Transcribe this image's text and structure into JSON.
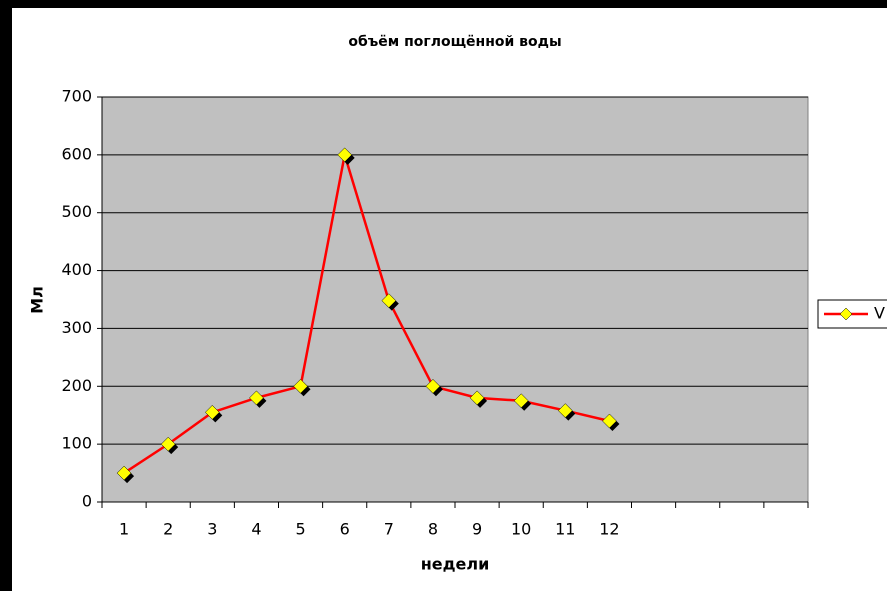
{
  "chart_data": {
    "type": "line",
    "title": "объём поглощённой воды",
    "x_label": "недели",
    "y_label": "Мл",
    "categories": [
      "1",
      "2",
      "3",
      "4",
      "5",
      "6",
      "7",
      "8",
      "9",
      "10",
      "11",
      "12",
      null,
      null,
      null,
      null
    ],
    "series": [
      {
        "name": "V",
        "color": "#ff0000",
        "marker_color": "#ffff00",
        "values": [
          50,
          100,
          155,
          180,
          200,
          600,
          348,
          200,
          180,
          175,
          158,
          140,
          null,
          null,
          null,
          null
        ]
      }
    ],
    "ylim": [
      0,
      700
    ],
    "yticks": [
      0,
      100,
      200,
      300,
      400,
      500,
      600,
      700
    ],
    "grid": true,
    "legend": "right"
  }
}
